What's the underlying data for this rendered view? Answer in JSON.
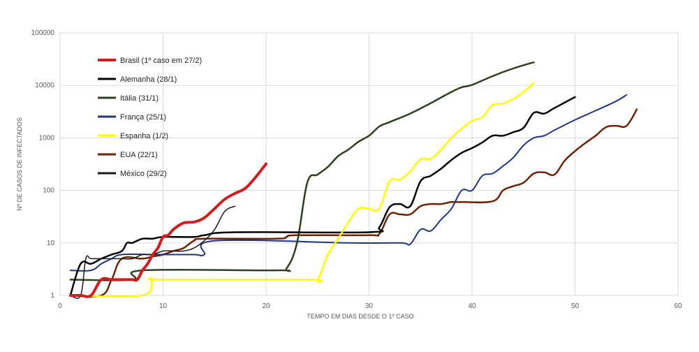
{
  "chart_data": {
    "type": "line",
    "title": "",
    "xlabel": "TEMPO EM DIAS DESDE O 1º CASO",
    "ylabel": "Nº DE CASOS DE INFECTADOS",
    "xlim": [
      0,
      60
    ],
    "ylim": [
      1,
      100000
    ],
    "yscale": "log",
    "x_ticks": [
      "0",
      "10",
      "20",
      "30",
      "40",
      "50",
      "60"
    ],
    "y_ticks": [
      "1",
      "10",
      "100",
      "1000",
      "10000",
      "100000"
    ],
    "grid": true,
    "legend_position": "top-left",
    "series": [
      {
        "name": "Brasil (1º caso em 27/2)",
        "color": "#cc1f1f",
        "width": 4,
        "points": [
          [
            1,
            1
          ],
          [
            2,
            1
          ],
          [
            3,
            1
          ],
          [
            4,
            2
          ],
          [
            5,
            2
          ],
          [
            6,
            2
          ],
          [
            7,
            2
          ],
          [
            7.5,
            2
          ],
          [
            8,
            3
          ],
          [
            8.5,
            4
          ],
          [
            9,
            6
          ],
          [
            9.5,
            8
          ],
          [
            10,
            13
          ],
          [
            10.5,
            14
          ],
          [
            11,
            18
          ],
          [
            12,
            24
          ],
          [
            13,
            25
          ],
          [
            14,
            30
          ],
          [
            15,
            45
          ],
          [
            16,
            68
          ],
          [
            17,
            88
          ],
          [
            18,
            110
          ],
          [
            19,
            180
          ],
          [
            20,
            320
          ]
        ]
      },
      {
        "name": "Alemanha (28/1)",
        "color": "#000000",
        "width": 2.5,
        "points": [
          [
            1,
            1
          ],
          [
            2,
            4
          ],
          [
            3,
            4
          ],
          [
            4,
            5
          ],
          [
            5,
            6
          ],
          [
            6,
            7
          ],
          [
            6.5,
            10
          ],
          [
            7,
            10
          ],
          [
            8,
            12
          ],
          [
            9,
            12
          ],
          [
            10,
            13
          ],
          [
            13,
            13
          ],
          [
            14,
            14
          ],
          [
            17,
            16
          ],
          [
            30,
            16
          ],
          [
            31,
            20
          ],
          [
            32,
            48
          ],
          [
            33,
            55
          ],
          [
            34,
            50
          ],
          [
            35,
            150
          ],
          [
            36,
            190
          ],
          [
            37,
            260
          ],
          [
            38,
            380
          ],
          [
            39,
            520
          ],
          [
            40,
            640
          ],
          [
            41,
            820
          ],
          [
            42,
            1100
          ],
          [
            43,
            1100
          ],
          [
            44,
            1280
          ],
          [
            45,
            1560
          ],
          [
            46,
            3000
          ],
          [
            47,
            2900
          ],
          [
            48,
            3700
          ],
          [
            50,
            6000
          ]
        ]
      },
      {
        "name": "Itália (31/1)",
        "color": "#2d3f1f",
        "width": 2.5,
        "points": [
          [
            1,
            2
          ],
          [
            7,
            2
          ],
          [
            8,
            3
          ],
          [
            21,
            3
          ],
          [
            22,
            3.3
          ],
          [
            23,
            10
          ],
          [
            24,
            140
          ],
          [
            25,
            200
          ],
          [
            26,
            280
          ],
          [
            27,
            450
          ],
          [
            28,
            600
          ],
          [
            29,
            850
          ],
          [
            30,
            1100
          ],
          [
            31,
            1650
          ],
          [
            32,
            2000
          ],
          [
            34,
            2900
          ],
          [
            36,
            4600
          ],
          [
            38,
            7500
          ],
          [
            39,
            9200
          ],
          [
            40,
            10200
          ],
          [
            42,
            15000
          ],
          [
            44,
            21000
          ],
          [
            46,
            27500
          ]
        ]
      },
      {
        "name": "França (25/1)",
        "color": "#1f3580",
        "width": 2,
        "points": [
          [
            1,
            3
          ],
          [
            3,
            3
          ],
          [
            4,
            4
          ],
          [
            5,
            5
          ],
          [
            6,
            6
          ],
          [
            9,
            6
          ],
          [
            10,
            6
          ],
          [
            13,
            6
          ],
          [
            14,
            6
          ],
          [
            15,
            11
          ],
          [
            28,
            10
          ],
          [
            33,
            10
          ],
          [
            34,
            9.5
          ],
          [
            35,
            18
          ],
          [
            36,
            17
          ],
          [
            37,
            28
          ],
          [
            38,
            45
          ],
          [
            39,
            100
          ],
          [
            40,
            100
          ],
          [
            41,
            190
          ],
          [
            42,
            210
          ],
          [
            43,
            290
          ],
          [
            44,
            420
          ],
          [
            45,
            720
          ],
          [
            46,
            1000
          ],
          [
            47,
            1100
          ],
          [
            48,
            1400
          ],
          [
            50,
            2200
          ],
          [
            52,
            3300
          ],
          [
            54,
            5000
          ],
          [
            55,
            6600
          ]
        ]
      },
      {
        "name": "Espanha (1/2)",
        "color": "#ffff00",
        "width": 2.5,
        "points": [
          [
            1,
            1
          ],
          [
            8,
            1
          ],
          [
            9,
            2
          ],
          [
            10,
            2
          ],
          [
            24,
            2
          ],
          [
            25,
            2
          ],
          [
            26,
            6
          ],
          [
            27,
            12
          ],
          [
            28,
            25
          ],
          [
            29,
            45
          ],
          [
            30,
            45
          ],
          [
            31,
            45
          ],
          [
            32,
            150
          ],
          [
            33,
            160
          ],
          [
            34,
            230
          ],
          [
            35,
            390
          ],
          [
            36,
            400
          ],
          [
            37,
            600
          ],
          [
            38,
            1000
          ],
          [
            39,
            1500
          ],
          [
            40,
            2100
          ],
          [
            41,
            2500
          ],
          [
            42,
            4200
          ],
          [
            43,
            4500
          ],
          [
            44,
            5500
          ],
          [
            45,
            7500
          ],
          [
            46,
            11000
          ]
        ]
      },
      {
        "name": "EUA (22/1)",
        "color": "#6b2306",
        "width": 2.5,
        "points": [
          [
            1,
            1
          ],
          [
            4,
            1
          ],
          [
            5,
            2
          ],
          [
            6,
            5
          ],
          [
            8,
            5
          ],
          [
            9,
            5.5
          ],
          [
            10,
            6
          ],
          [
            11,
            7
          ],
          [
            12,
            8
          ],
          [
            13,
            11
          ],
          [
            14,
            12
          ],
          [
            21,
            12
          ],
          [
            22,
            13
          ],
          [
            23,
            14
          ],
          [
            30,
            14
          ],
          [
            31,
            15
          ],
          [
            32,
            35
          ],
          [
            33,
            35
          ],
          [
            34,
            35
          ],
          [
            35,
            50
          ],
          [
            36,
            55
          ],
          [
            37,
            55
          ],
          [
            38,
            60
          ],
          [
            39,
            60
          ],
          [
            42,
            62
          ],
          [
            43,
            100
          ],
          [
            44,
            120
          ],
          [
            45,
            140
          ],
          [
            46,
            210
          ],
          [
            47,
            220
          ],
          [
            48,
            200
          ],
          [
            49,
            370
          ],
          [
            50,
            560
          ],
          [
            51,
            800
          ],
          [
            52,
            1100
          ],
          [
            53,
            1600
          ],
          [
            54,
            1700
          ],
          [
            55,
            1700
          ],
          [
            56,
            3500
          ]
        ]
      },
      {
        "name": "México (29/2)",
        "color": "#1a1a1a",
        "width": 1.5,
        "points": [
          [
            1,
            1
          ],
          [
            2,
            1
          ],
          [
            2.5,
            5
          ],
          [
            3,
            5
          ],
          [
            4,
            5
          ],
          [
            5,
            5
          ],
          [
            6,
            5
          ],
          [
            7,
            5
          ],
          [
            8,
            6
          ],
          [
            9,
            6
          ],
          [
            10,
            7
          ],
          [
            11,
            7
          ],
          [
            12,
            7
          ],
          [
            13,
            8
          ],
          [
            14,
            11
          ],
          [
            15,
            18
          ],
          [
            16,
            40
          ],
          [
            17,
            50
          ]
        ]
      }
    ]
  }
}
